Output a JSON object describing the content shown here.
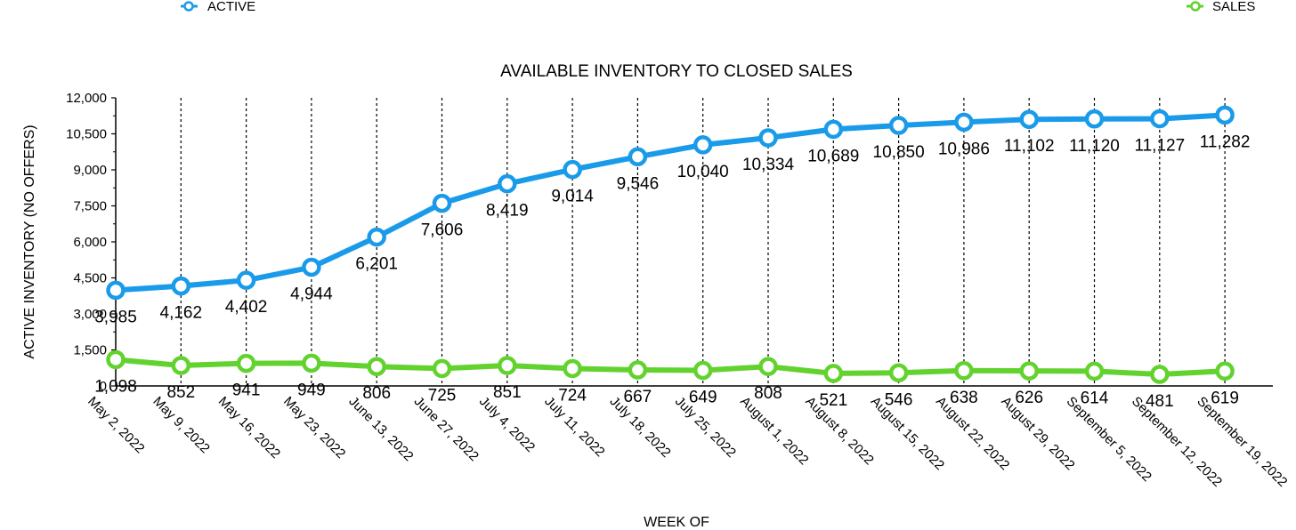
{
  "chart_data": {
    "type": "line",
    "title": "AVAILABLE INVENTORY TO CLOSED SALES",
    "xlabel": "WEEK OF",
    "ylabel": "ACTIVE INVENTORY (NO OFFERS)",
    "ylim": [
      0,
      12000
    ],
    "yticks": [
      0,
      1500,
      3000,
      4500,
      6000,
      7500,
      9000,
      10500,
      12000
    ],
    "ytick_labels": [
      "0",
      "1,500",
      "3,000",
      "4,500",
      "6,000",
      "7,500",
      "9,000",
      "10,500",
      "12,000"
    ],
    "grid": "vertical dotted lines at each week",
    "legend_placement": "top",
    "categories": [
      "May 2, 2022",
      "May 9, 2022",
      "May 16, 2022",
      "May 23, 2022",
      "June 13, 2022",
      "June 27, 2022",
      "July 4, 2022",
      "July 11, 2022",
      "July 18, 2022",
      "July 25, 2022",
      "August 1, 2022",
      "August 8, 2022",
      "August 15, 2022",
      "August 22, 2022",
      "August 29, 2022",
      "September 5, 2022",
      "September 12, 2022",
      "September 19, 2022"
    ],
    "series": [
      {
        "name": "ACTIVE",
        "color": "#1A9BEA",
        "values": [
          3985,
          4162,
          4402,
          4944,
          6201,
          7606,
          8419,
          9014,
          9546,
          10040,
          10334,
          10689,
          10850,
          10986,
          11102,
          11120,
          11127,
          11282
        ],
        "labels": [
          "3,985",
          "4,162",
          "4,402",
          "4,944",
          "6,201",
          "7,606",
          "8,419",
          "9,014",
          "9,546",
          "10,040",
          "10,334",
          "10,689",
          "10,850",
          "10,986",
          "11,102",
          "11,120",
          "11,127",
          "11,282"
        ]
      },
      {
        "name": "SALES",
        "color": "#62D22E",
        "values": [
          1098,
          852,
          941,
          949,
          806,
          725,
          851,
          724,
          667,
          649,
          808,
          521,
          546,
          638,
          626,
          614,
          481,
          619
        ],
        "labels": [
          "1,098",
          "852",
          "941",
          "949",
          "806",
          "725",
          "851",
          "724",
          "667",
          "649",
          "808",
          "521",
          "546",
          "638",
          "626",
          "614",
          "481",
          "619"
        ]
      }
    ]
  }
}
